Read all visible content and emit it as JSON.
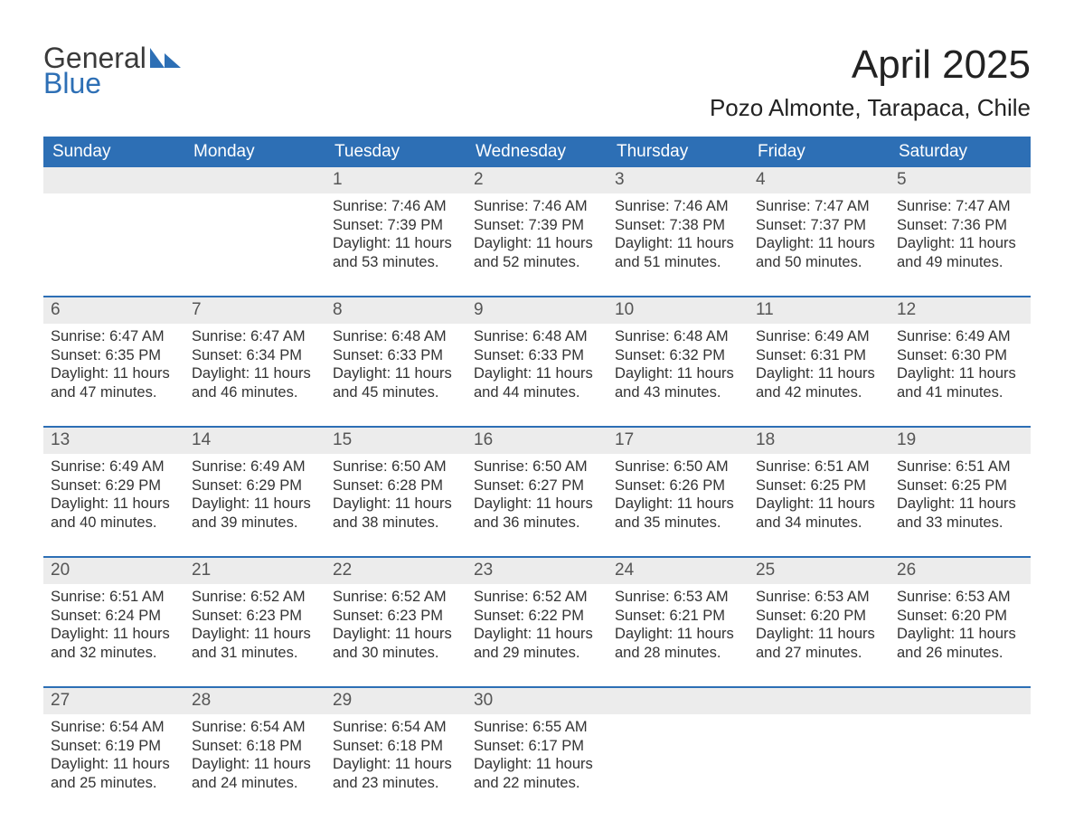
{
  "brand": {
    "word1": "General",
    "word2": "Blue"
  },
  "colors": {
    "primary": "#2d6fb5",
    "header_text": "#ffffff",
    "daynum_bg": "#ececec",
    "text": "#333333",
    "page_bg": "#ffffff"
  },
  "title": "April 2025",
  "location": "Pozo Almonte, Tarapaca, Chile",
  "weekdays": [
    "Sunday",
    "Monday",
    "Tuesday",
    "Wednesday",
    "Thursday",
    "Friday",
    "Saturday"
  ],
  "labels": {
    "sunrise": "Sunrise: ",
    "sunset": "Sunset: ",
    "daylight": "Daylight: "
  },
  "weeks": [
    [
      null,
      null,
      {
        "n": "1",
        "sunrise": "7:46 AM",
        "sunset": "7:39 PM",
        "daylight1": "11 hours",
        "daylight2": "and 53 minutes."
      },
      {
        "n": "2",
        "sunrise": "7:46 AM",
        "sunset": "7:39 PM",
        "daylight1": "11 hours",
        "daylight2": "and 52 minutes."
      },
      {
        "n": "3",
        "sunrise": "7:46 AM",
        "sunset": "7:38 PM",
        "daylight1": "11 hours",
        "daylight2": "and 51 minutes."
      },
      {
        "n": "4",
        "sunrise": "7:47 AM",
        "sunset": "7:37 PM",
        "daylight1": "11 hours",
        "daylight2": "and 50 minutes."
      },
      {
        "n": "5",
        "sunrise": "7:47 AM",
        "sunset": "7:36 PM",
        "daylight1": "11 hours",
        "daylight2": "and 49 minutes."
      }
    ],
    [
      {
        "n": "6",
        "sunrise": "6:47 AM",
        "sunset": "6:35 PM",
        "daylight1": "11 hours",
        "daylight2": "and 47 minutes."
      },
      {
        "n": "7",
        "sunrise": "6:47 AM",
        "sunset": "6:34 PM",
        "daylight1": "11 hours",
        "daylight2": "and 46 minutes."
      },
      {
        "n": "8",
        "sunrise": "6:48 AM",
        "sunset": "6:33 PM",
        "daylight1": "11 hours",
        "daylight2": "and 45 minutes."
      },
      {
        "n": "9",
        "sunrise": "6:48 AM",
        "sunset": "6:33 PM",
        "daylight1": "11 hours",
        "daylight2": "and 44 minutes."
      },
      {
        "n": "10",
        "sunrise": "6:48 AM",
        "sunset": "6:32 PM",
        "daylight1": "11 hours",
        "daylight2": "and 43 minutes."
      },
      {
        "n": "11",
        "sunrise": "6:49 AM",
        "sunset": "6:31 PM",
        "daylight1": "11 hours",
        "daylight2": "and 42 minutes."
      },
      {
        "n": "12",
        "sunrise": "6:49 AM",
        "sunset": "6:30 PM",
        "daylight1": "11 hours",
        "daylight2": "and 41 minutes."
      }
    ],
    [
      {
        "n": "13",
        "sunrise": "6:49 AM",
        "sunset": "6:29 PM",
        "daylight1": "11 hours",
        "daylight2": "and 40 minutes."
      },
      {
        "n": "14",
        "sunrise": "6:49 AM",
        "sunset": "6:29 PM",
        "daylight1": "11 hours",
        "daylight2": "and 39 minutes."
      },
      {
        "n": "15",
        "sunrise": "6:50 AM",
        "sunset": "6:28 PM",
        "daylight1": "11 hours",
        "daylight2": "and 38 minutes."
      },
      {
        "n": "16",
        "sunrise": "6:50 AM",
        "sunset": "6:27 PM",
        "daylight1": "11 hours",
        "daylight2": "and 36 minutes."
      },
      {
        "n": "17",
        "sunrise": "6:50 AM",
        "sunset": "6:26 PM",
        "daylight1": "11 hours",
        "daylight2": "and 35 minutes."
      },
      {
        "n": "18",
        "sunrise": "6:51 AM",
        "sunset": "6:25 PM",
        "daylight1": "11 hours",
        "daylight2": "and 34 minutes."
      },
      {
        "n": "19",
        "sunrise": "6:51 AM",
        "sunset": "6:25 PM",
        "daylight1": "11 hours",
        "daylight2": "and 33 minutes."
      }
    ],
    [
      {
        "n": "20",
        "sunrise": "6:51 AM",
        "sunset": "6:24 PM",
        "daylight1": "11 hours",
        "daylight2": "and 32 minutes."
      },
      {
        "n": "21",
        "sunrise": "6:52 AM",
        "sunset": "6:23 PM",
        "daylight1": "11 hours",
        "daylight2": "and 31 minutes."
      },
      {
        "n": "22",
        "sunrise": "6:52 AM",
        "sunset": "6:23 PM",
        "daylight1": "11 hours",
        "daylight2": "and 30 minutes."
      },
      {
        "n": "23",
        "sunrise": "6:52 AM",
        "sunset": "6:22 PM",
        "daylight1": "11 hours",
        "daylight2": "and 29 minutes."
      },
      {
        "n": "24",
        "sunrise": "6:53 AM",
        "sunset": "6:21 PM",
        "daylight1": "11 hours",
        "daylight2": "and 28 minutes."
      },
      {
        "n": "25",
        "sunrise": "6:53 AM",
        "sunset": "6:20 PM",
        "daylight1": "11 hours",
        "daylight2": "and 27 minutes."
      },
      {
        "n": "26",
        "sunrise": "6:53 AM",
        "sunset": "6:20 PM",
        "daylight1": "11 hours",
        "daylight2": "and 26 minutes."
      }
    ],
    [
      {
        "n": "27",
        "sunrise": "6:54 AM",
        "sunset": "6:19 PM",
        "daylight1": "11 hours",
        "daylight2": "and 25 minutes."
      },
      {
        "n": "28",
        "sunrise": "6:54 AM",
        "sunset": "6:18 PM",
        "daylight1": "11 hours",
        "daylight2": "and 24 minutes."
      },
      {
        "n": "29",
        "sunrise": "6:54 AM",
        "sunset": "6:18 PM",
        "daylight1": "11 hours",
        "daylight2": "and 23 minutes."
      },
      {
        "n": "30",
        "sunrise": "6:55 AM",
        "sunset": "6:17 PM",
        "daylight1": "11 hours",
        "daylight2": "and 22 minutes."
      },
      null,
      null,
      null
    ]
  ]
}
